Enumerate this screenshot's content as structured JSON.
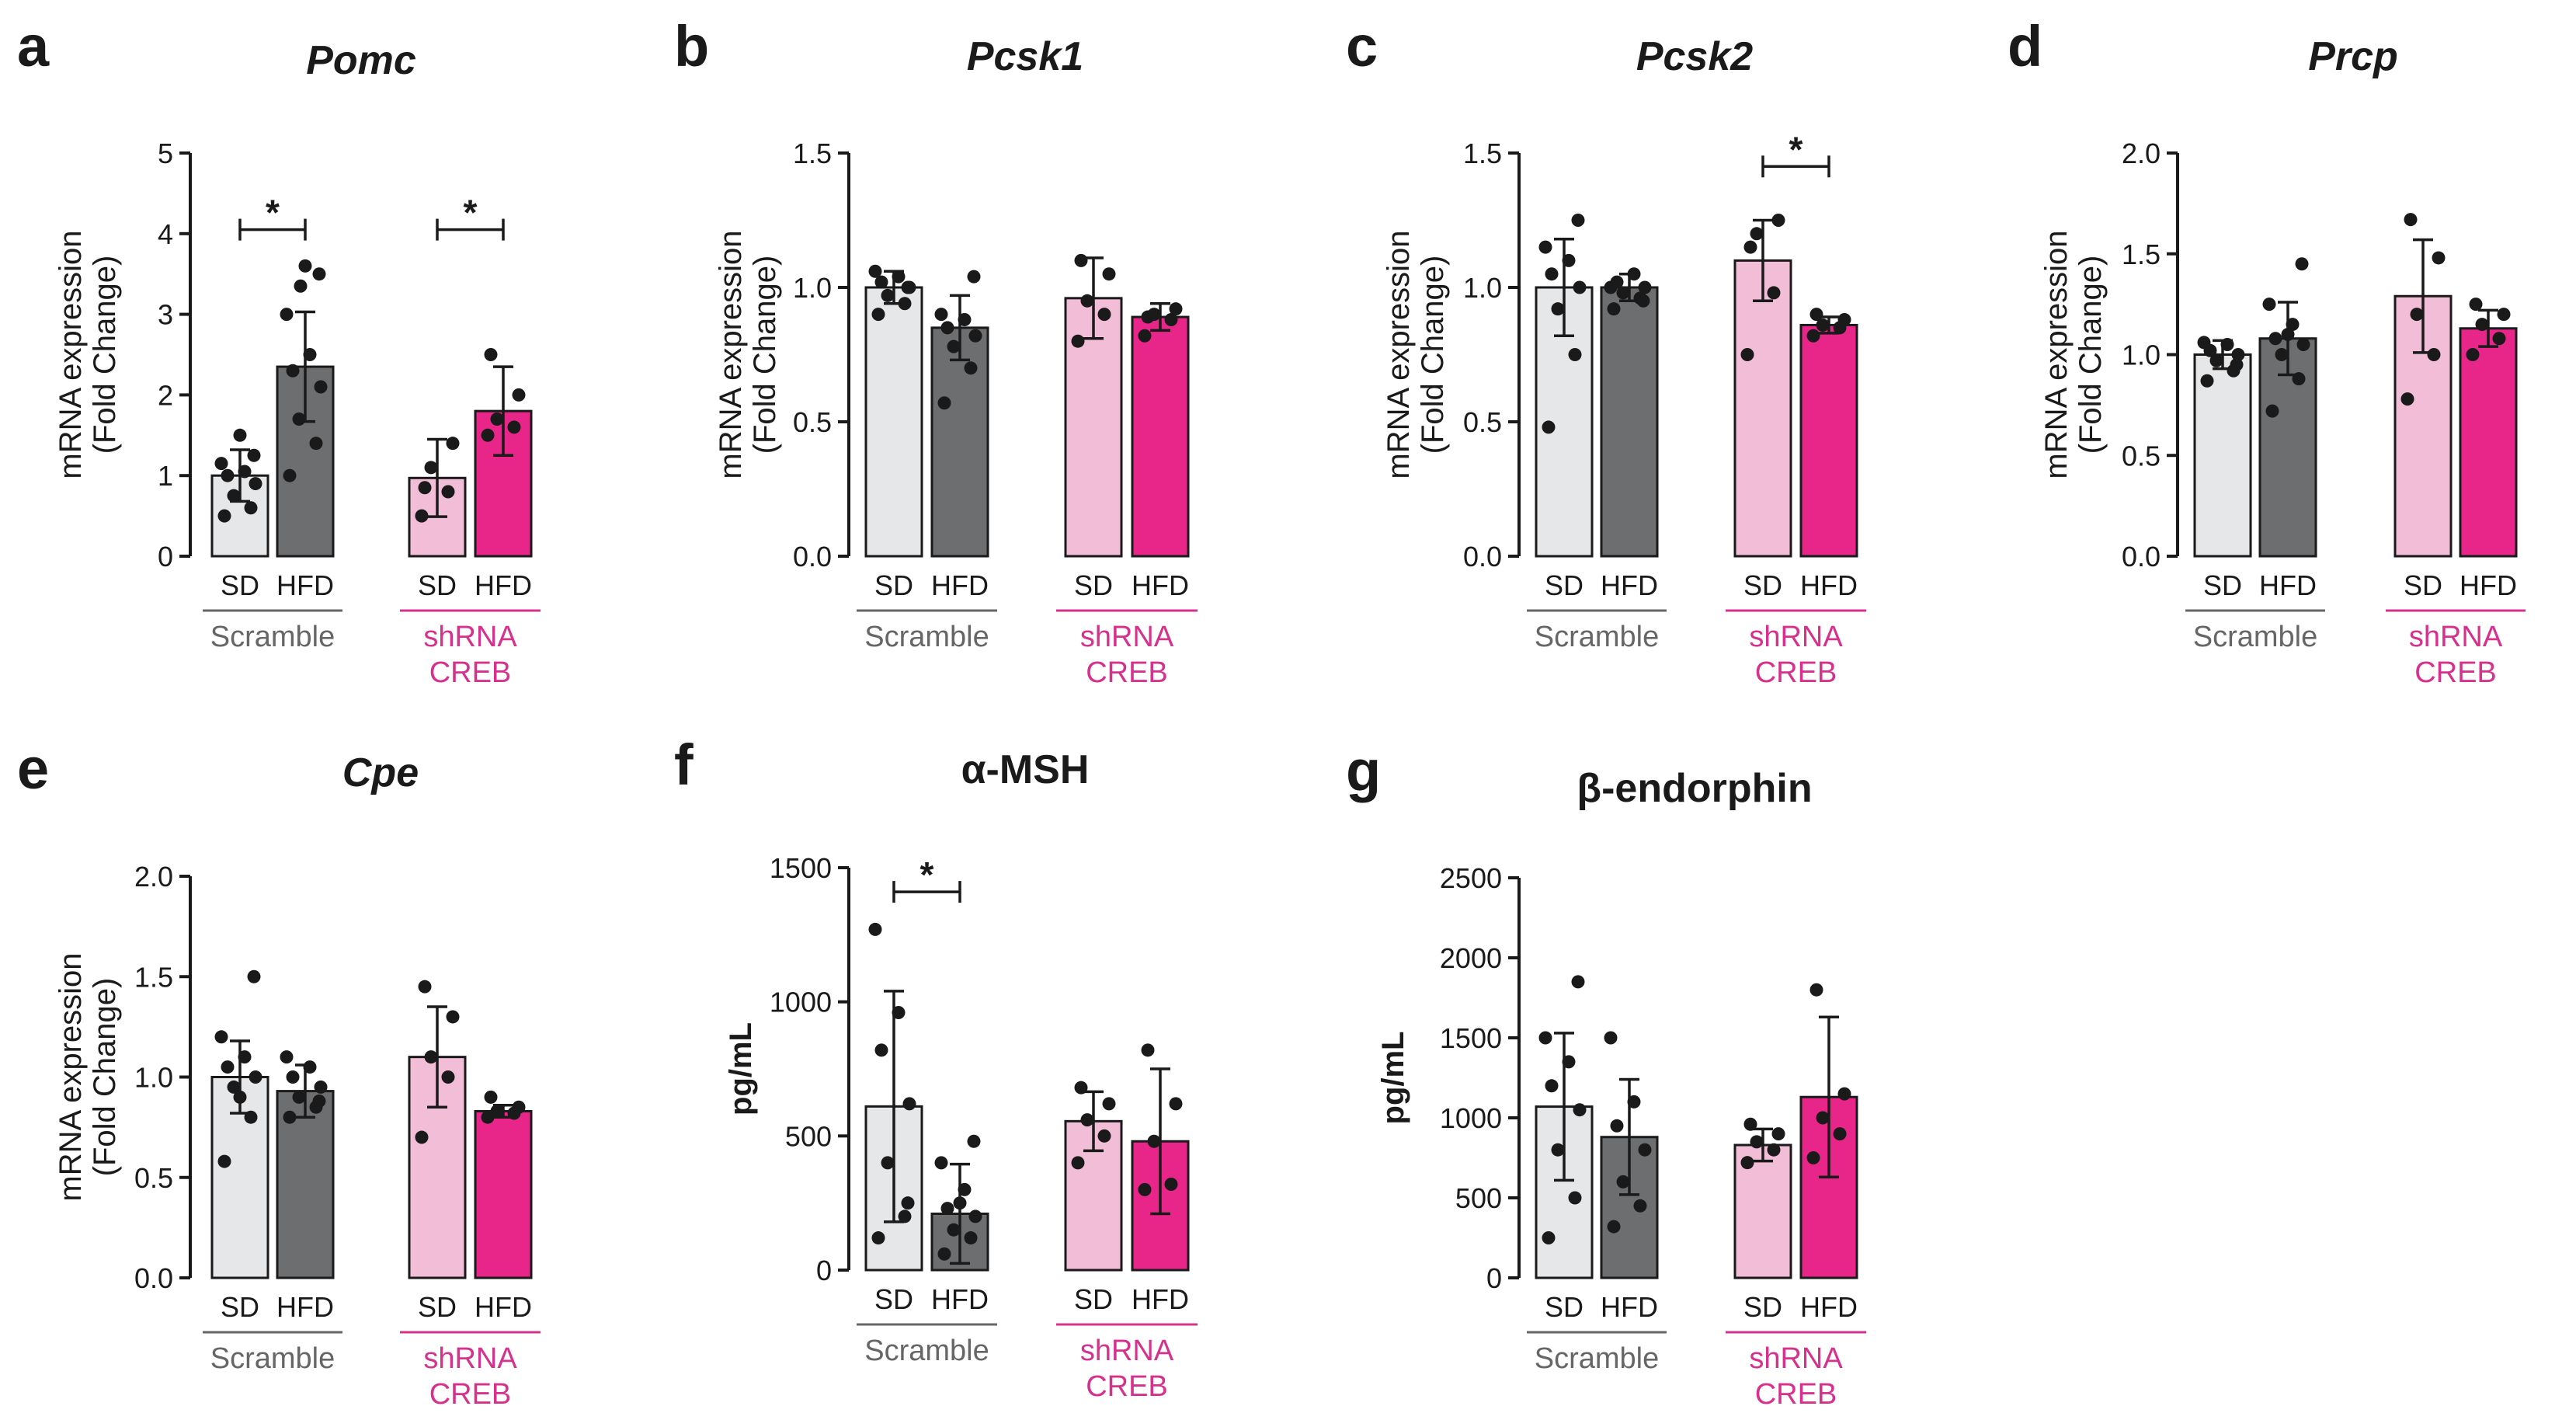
{
  "colors": {
    "sd_scramble": "#e6e7e8",
    "hfd_scramble": "#6d6e70",
    "sd_shrna": "#f2bdd6",
    "hfd_shrna": "#e8268a",
    "scramble_text": "#666666",
    "shrna_text": "#d6318d",
    "axis": "#1a1a1a"
  },
  "categories": [
    "SD",
    "HFD",
    "SD",
    "HFD"
  ],
  "groups": [
    "Scramble",
    "shRNA\nCREB"
  ],
  "chart_data": [
    {
      "type": "bar",
      "panel": "a",
      "title": "Pomc",
      "italic": true,
      "ylabel": [
        "mRNA expression",
        "(Fold Change)"
      ],
      "ylim": [
        0,
        5
      ],
      "ticks": [
        0,
        1,
        2,
        3,
        4,
        5
      ],
      "tick_labels": [
        "0",
        "1",
        "2",
        "3",
        "4",
        "5"
      ],
      "values": [
        1.0,
        2.35,
        0.97,
        1.8
      ],
      "err": [
        0.32,
        0.68,
        0.48,
        0.55
      ],
      "points": [
        [
          0.5,
          0.6,
          0.75,
          0.9,
          1.0,
          1.05,
          1.15,
          1.25,
          1.5
        ],
        [
          1.0,
          1.4,
          1.7,
          2.1,
          2.3,
          2.5,
          3.0,
          3.5,
          3.6,
          3.35
        ],
        [
          0.5,
          0.8,
          1.1,
          1.4,
          0.85
        ],
        [
          1.5,
          1.6,
          1.7,
          2.0,
          2.5
        ]
      ],
      "sig": [
        {
          "from": 0,
          "to": 1,
          "y": 4.05,
          "label": "*"
        },
        {
          "from": 2,
          "to": 3,
          "y": 4.05,
          "label": "*"
        }
      ]
    },
    {
      "type": "bar",
      "panel": "b",
      "title": "Pcsk1",
      "italic": true,
      "ylabel": [
        "mRNA expression",
        "(Fold Change)"
      ],
      "ylim": [
        0,
        1.5
      ],
      "ticks": [
        0,
        0.5,
        1.0,
        1.5
      ],
      "tick_labels": [
        "0.0",
        "0.5",
        "1.0",
        "1.5"
      ],
      "values": [
        1.0,
        0.85,
        0.96,
        0.89
      ],
      "err": [
        0.06,
        0.12,
        0.15,
        0.05
      ],
      "points": [
        [
          0.9,
          0.94,
          0.97,
          1.0,
          1.02,
          1.04,
          1.06,
          1.0
        ],
        [
          0.57,
          0.7,
          0.78,
          0.82,
          0.85,
          0.88,
          0.9,
          1.04
        ],
        [
          0.8,
          0.9,
          0.95,
          1.05,
          1.1
        ],
        [
          0.82,
          0.88,
          0.9,
          0.92,
          0.89
        ]
      ],
      "sig": []
    },
    {
      "type": "bar",
      "panel": "c",
      "title": "Pcsk2",
      "italic": true,
      "ylabel": [
        "mRNA expression",
        "(Fold Change)"
      ],
      "ylim": [
        0,
        1.5
      ],
      "ticks": [
        0,
        0.5,
        1.0,
        1.5
      ],
      "tick_labels": [
        "0.0",
        "0.5",
        "1.0",
        "1.5"
      ],
      "values": [
        1.0,
        1.0,
        1.1,
        0.86
      ],
      "err": [
        0.18,
        0.05,
        0.15,
        0.03
      ],
      "points": [
        [
          0.48,
          0.75,
          0.92,
          1.0,
          1.05,
          1.1,
          1.15,
          1.25
        ],
        [
          0.92,
          0.96,
          0.98,
          1.0,
          1.02,
          1.05,
          1.0,
          0.95
        ],
        [
          0.75,
          0.98,
          1.2,
          1.25,
          1.15
        ],
        [
          0.82,
          0.85,
          0.86,
          0.88,
          0.9
        ]
      ],
      "sig": [
        {
          "from": 2,
          "to": 3,
          "y": 1.45,
          "label": "*"
        }
      ]
    },
    {
      "type": "bar",
      "panel": "d",
      "title": "Prcp",
      "italic": true,
      "ylabel": [
        "mRNA expression",
        "(Fold Change)"
      ],
      "ylim": [
        0,
        2.0
      ],
      "ticks": [
        0,
        0.5,
        1.0,
        1.5,
        2.0
      ],
      "tick_labels": [
        "0.0",
        "0.5",
        "1.0",
        "1.5",
        "2.0"
      ],
      "values": [
        1.0,
        1.08,
        1.29,
        1.13
      ],
      "err": [
        0.07,
        0.18,
        0.28,
        0.09
      ],
      "points": [
        [
          0.87,
          0.92,
          0.97,
          1.0,
          1.02,
          1.05,
          1.06,
          0.95
        ],
        [
          0.72,
          0.88,
          1.0,
          1.05,
          1.08,
          1.15,
          1.25,
          1.45,
          1.1
        ],
        [
          0.78,
          1.0,
          1.2,
          1.48,
          1.67
        ],
        [
          1.0,
          1.08,
          1.15,
          1.2,
          1.25
        ]
      ],
      "sig": []
    },
    {
      "type": "bar",
      "panel": "e",
      "title": "Cpe",
      "italic": true,
      "ylabel": [
        "mRNA expression",
        "(Fold Change)"
      ],
      "ylim": [
        0,
        2.0
      ],
      "ticks": [
        0,
        0.5,
        1.0,
        1.5,
        2.0
      ],
      "tick_labels": [
        "0.0",
        "0.5",
        "1.0",
        "1.5",
        "2.0"
      ],
      "values": [
        1.0,
        0.93,
        1.1,
        0.83
      ],
      "err": [
        0.18,
        0.13,
        0.25,
        0.03
      ],
      "points": [
        [
          0.58,
          0.8,
          0.95,
          1.0,
          1.05,
          1.1,
          1.2,
          1.5,
          0.9
        ],
        [
          0.8,
          0.85,
          0.9,
          0.95,
          1.0,
          1.05,
          1.1,
          0.88
        ],
        [
          0.7,
          1.0,
          1.1,
          1.3,
          1.45
        ],
        [
          0.8,
          0.82,
          0.83,
          0.85,
          0.9
        ]
      ],
      "sig": []
    },
    {
      "type": "bar",
      "panel": "f",
      "title": "α-MSH",
      "italic": false,
      "ylabel": [
        "pg/mL"
      ],
      "ylim": [
        0,
        1500
      ],
      "ticks": [
        0,
        500,
        1000,
        1500
      ],
      "tick_labels": [
        "0",
        "500",
        "1000",
        "1500"
      ],
      "values": [
        610,
        210,
        555,
        480
      ],
      "err": [
        430,
        185,
        110,
        270
      ],
      "points": [
        [
          120,
          200,
          400,
          620,
          820,
          960,
          1270,
          250
        ],
        [
          60,
          120,
          150,
          200,
          230,
          300,
          400,
          480,
          250
        ],
        [
          400,
          500,
          560,
          620,
          680
        ],
        [
          300,
          320,
          480,
          620,
          820
        ]
      ],
      "sig": [
        {
          "from": 0,
          "to": 1,
          "y": 1410,
          "label": "*"
        }
      ]
    },
    {
      "type": "bar",
      "panel": "g",
      "title": "β-endorphin",
      "italic": false,
      "ylabel": [
        "pg/mL"
      ],
      "ylim": [
        0,
        2500
      ],
      "ticks": [
        0,
        500,
        1000,
        1500,
        2000,
        2500
      ],
      "tick_labels": [
        "0",
        "500",
        "1000",
        "1500",
        "2000",
        "2500"
      ],
      "values": [
        1070,
        880,
        830,
        1130
      ],
      "err": [
        460,
        360,
        100,
        500
      ],
      "points": [
        [
          250,
          500,
          800,
          1050,
          1200,
          1350,
          1500,
          1850
        ],
        [
          320,
          450,
          600,
          800,
          950,
          1100,
          1500
        ],
        [
          720,
          800,
          850,
          900,
          960
        ],
        [
          750,
          900,
          1000,
          1150,
          1800
        ]
      ],
      "sig": []
    }
  ]
}
